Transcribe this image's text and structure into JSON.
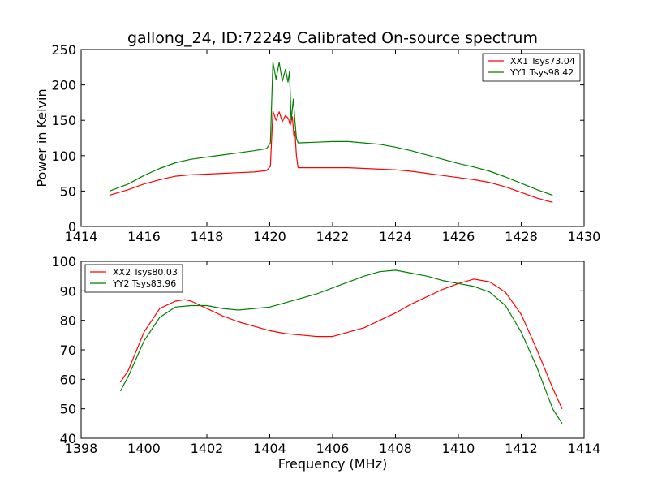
{
  "chart_data": [
    {
      "type": "line",
      "title": "gallong_24, ID:72249 Calibrated On-source spectrum",
      "xlabel": "",
      "ylabel": "Power in Kelvin",
      "xlim": [
        1414,
        1430
      ],
      "ylim": [
        0,
        250
      ],
      "xticks": [
        1414,
        1416,
        1418,
        1420,
        1422,
        1424,
        1426,
        1428,
        1430
      ],
      "yticks": [
        0,
        50,
        100,
        150,
        200,
        250
      ],
      "legend": "top-right",
      "grid": false,
      "series": [
        {
          "name": "XX1 Tsys73.04",
          "color": "#ff0000",
          "points": [
            [
              1414.9,
              44
            ],
            [
              1415.5,
              52
            ],
            [
              1416,
              60
            ],
            [
              1416.5,
              66
            ],
            [
              1417,
              71
            ],
            [
              1417.5,
              73
            ],
            [
              1418,
              74
            ],
            [
              1418.5,
              75
            ],
            [
              1419,
              76
            ],
            [
              1419.5,
              77
            ],
            [
              1419.9,
              79
            ],
            [
              1420.02,
              85
            ],
            [
              1420.1,
              163
            ],
            [
              1420.2,
              150
            ],
            [
              1420.3,
              162
            ],
            [
              1420.4,
              148
            ],
            [
              1420.5,
              157
            ],
            [
              1420.6,
              152
            ],
            [
              1420.65,
              143
            ],
            [
              1420.72,
              155
            ],
            [
              1420.77,
              127
            ],
            [
              1420.8,
              135
            ],
            [
              1420.85,
              100
            ],
            [
              1420.9,
              83
            ],
            [
              1421.5,
              83
            ],
            [
              1422,
              83
            ],
            [
              1422.5,
              83
            ],
            [
              1423,
              82
            ],
            [
              1423.5,
              81
            ],
            [
              1424,
              80
            ],
            [
              1424.5,
              78
            ],
            [
              1425,
              75
            ],
            [
              1425.5,
              72
            ],
            [
              1426,
              69
            ],
            [
              1426.5,
              66
            ],
            [
              1427,
              62
            ],
            [
              1427.5,
              56
            ],
            [
              1428,
              48
            ],
            [
              1428.5,
              40
            ],
            [
              1429,
              34
            ]
          ]
        },
        {
          "name": "YY1 Tsys98.42",
          "color": "#008000",
          "points": [
            [
              1414.9,
              50
            ],
            [
              1415.5,
              60
            ],
            [
              1416,
              72
            ],
            [
              1416.5,
              82
            ],
            [
              1417,
              90
            ],
            [
              1417.5,
              95
            ],
            [
              1418,
              98
            ],
            [
              1418.5,
              101
            ],
            [
              1419,
              104
            ],
            [
              1419.5,
              107
            ],
            [
              1419.9,
              110
            ],
            [
              1420.02,
              118
            ],
            [
              1420.1,
              232
            ],
            [
              1420.2,
              208
            ],
            [
              1420.3,
              232
            ],
            [
              1420.4,
              205
            ],
            [
              1420.5,
              222
            ],
            [
              1420.58,
              204
            ],
            [
              1420.63,
              219
            ],
            [
              1420.68,
              150
            ],
            [
              1420.75,
              180
            ],
            [
              1420.8,
              150
            ],
            [
              1420.85,
              125
            ],
            [
              1420.9,
              118
            ],
            [
              1421.5,
              119
            ],
            [
              1422,
              120
            ],
            [
              1422.5,
              120
            ],
            [
              1423,
              118
            ],
            [
              1423.5,
              116
            ],
            [
              1424,
              112
            ],
            [
              1424.5,
              107
            ],
            [
              1425,
              101
            ],
            [
              1425.5,
              95
            ],
            [
              1426,
              89
            ],
            [
              1426.5,
              84
            ],
            [
              1427,
              78
            ],
            [
              1427.5,
              70
            ],
            [
              1428,
              61
            ],
            [
              1428.5,
              52
            ],
            [
              1429,
              44
            ]
          ]
        }
      ]
    },
    {
      "type": "line",
      "title": "",
      "xlabel": "Frequency (MHz)",
      "ylabel": "",
      "xlim": [
        1398,
        1414
      ],
      "ylim": [
        40,
        100
      ],
      "xticks": [
        1398,
        1400,
        1402,
        1404,
        1406,
        1408,
        1410,
        1412,
        1414
      ],
      "yticks": [
        40,
        50,
        60,
        70,
        80,
        90,
        100
      ],
      "legend": "top-left",
      "grid": false,
      "series": [
        {
          "name": "XX2 Tsys80.03",
          "color": "#ff0000",
          "points": [
            [
              1399.25,
              59
            ],
            [
              1399.5,
              63
            ],
            [
              1400,
              76
            ],
            [
              1400.5,
              84
            ],
            [
              1401,
              86.5
            ],
            [
              1401.3,
              87
            ],
            [
              1401.5,
              86.5
            ],
            [
              1402,
              84
            ],
            [
              1402.5,
              81.5
            ],
            [
              1403,
              79.5
            ],
            [
              1403.5,
              78
            ],
            [
              1404,
              76.5
            ],
            [
              1404.5,
              75.5
            ],
            [
              1405,
              75
            ],
            [
              1405.5,
              74.5
            ],
            [
              1406,
              74.5
            ],
            [
              1406.5,
              76
            ],
            [
              1407,
              77.5
            ],
            [
              1407.5,
              80
            ],
            [
              1408,
              82.5
            ],
            [
              1408.5,
              85.5
            ],
            [
              1409,
              88
            ],
            [
              1409.5,
              90.5
            ],
            [
              1410,
              92.5
            ],
            [
              1410.5,
              94
            ],
            [
              1411,
              93
            ],
            [
              1411.5,
              89.5
            ],
            [
              1412,
              82
            ],
            [
              1412.5,
              70
            ],
            [
              1413,
              57
            ],
            [
              1413.3,
              50
            ]
          ]
        },
        {
          "name": "YY2 Tsys83.96",
          "color": "#008000",
          "points": [
            [
              1399.25,
              56
            ],
            [
              1399.5,
              61
            ],
            [
              1400,
              73
            ],
            [
              1400.5,
              81
            ],
            [
              1401,
              84.5
            ],
            [
              1401.5,
              85
            ],
            [
              1402,
              85
            ],
            [
              1402.5,
              84
            ],
            [
              1403,
              83.5
            ],
            [
              1403.5,
              84
            ],
            [
              1404,
              84.5
            ],
            [
              1404.5,
              86
            ],
            [
              1405,
              87.5
            ],
            [
              1405.5,
              89
            ],
            [
              1406,
              91
            ],
            [
              1406.5,
              93
            ],
            [
              1407,
              95
            ],
            [
              1407.5,
              96.5
            ],
            [
              1408,
              97
            ],
            [
              1408.5,
              96
            ],
            [
              1409,
              95
            ],
            [
              1409.5,
              93.5
            ],
            [
              1410,
              92.5
            ],
            [
              1410.5,
              91.5
            ],
            [
              1411,
              89.5
            ],
            [
              1411.5,
              85
            ],
            [
              1412,
              76
            ],
            [
              1412.5,
              64
            ],
            [
              1413,
              50
            ],
            [
              1413.3,
              45
            ]
          ]
        }
      ]
    }
  ]
}
